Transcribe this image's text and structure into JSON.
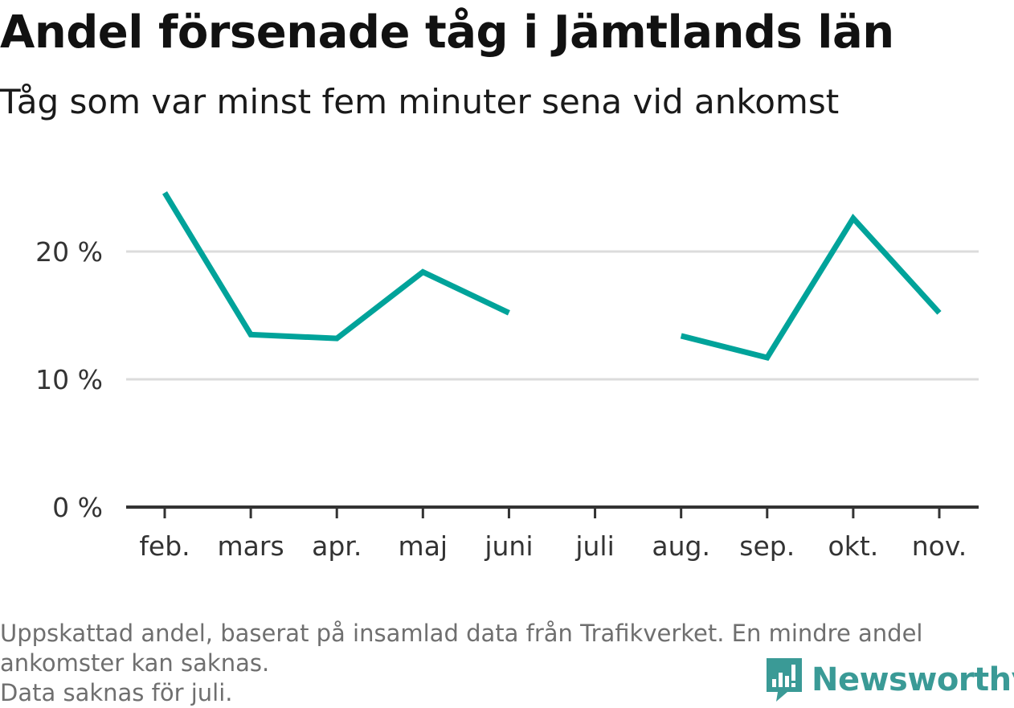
{
  "title": "Andel försenade tåg i Jämtlands län",
  "subtitle": "Tåg som var minst fem minuter sena vid ankomst",
  "footnote": {
    "line1": "Uppskattad andel, baserat på insamlad data från Trafikverket. En mindre andel",
    "line2": "ankomster kan saknas.",
    "line3": "Data saknas för juli."
  },
  "brand": {
    "name": "Newsworthy",
    "icon": "newsworthy-logo-icon",
    "color": "#3a9a96"
  },
  "chart_data": {
    "type": "line",
    "categories": [
      "feb.",
      "mars",
      "apr.",
      "maj",
      "juni",
      "juli",
      "aug.",
      "sep.",
      "okt.",
      "nov."
    ],
    "series": [
      {
        "values": [
          24.6,
          13.5,
          13.2,
          18.4,
          15.2,
          null,
          13.4,
          11.7,
          22.6,
          15.2
        ]
      }
    ],
    "ylim": [
      0,
      25
    ],
    "yticks": [
      0,
      10,
      20
    ],
    "ytick_labels": [
      "0 %",
      "10 %",
      "20 %"
    ],
    "line_color": "#00a39a",
    "grid": true
  }
}
